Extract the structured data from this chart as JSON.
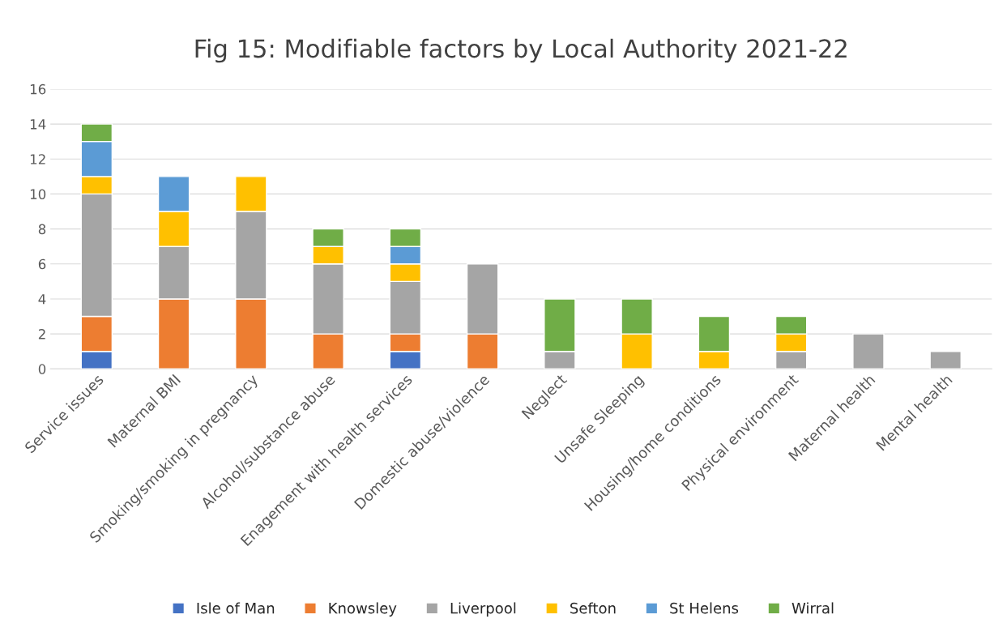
{
  "chart_data": {
    "type": "bar",
    "title": "Fig 15: Modifiable factors by Local Authority 2021-22",
    "categories": [
      "Service issues",
      "Maternal BMI",
      "Smoking/smoking in pregnancy",
      "Alcohol/substance abuse",
      "Enagement with health services",
      "Domestic abuse/violence",
      "Neglect",
      "Unsafe Sleeping",
      "Housing/home conditions",
      "Physical environment",
      "Maternal health",
      "Mental health"
    ],
    "stacked": true,
    "series": [
      {
        "name": "Isle of Man",
        "color": "#4472c4",
        "values": [
          1,
          null,
          null,
          null,
          1,
          null,
          null,
          null,
          null,
          null,
          null,
          null
        ]
      },
      {
        "name": "Knowsley",
        "color": "#ed7d31",
        "values": [
          2,
          4,
          4,
          2,
          1,
          2,
          null,
          null,
          null,
          null,
          null,
          null
        ]
      },
      {
        "name": "Liverpool",
        "color": "#a5a5a5",
        "values": [
          7,
          3,
          5,
          4,
          3,
          4,
          1,
          null,
          null,
          1,
          2,
          1
        ]
      },
      {
        "name": "Sefton",
        "color": "#ffc000",
        "values": [
          1,
          2,
          2,
          1,
          1,
          null,
          null,
          2,
          1,
          1,
          null,
          null
        ]
      },
      {
        "name": "St Helens",
        "color": "#5b9bd5",
        "values": [
          2,
          2,
          null,
          null,
          1,
          null,
          null,
          null,
          null,
          null,
          null,
          null
        ]
      },
      {
        "name": "Wirral",
        "color": "#70ad47",
        "values": [
          1,
          null,
          null,
          1,
          1,
          null,
          3,
          2,
          2,
          1,
          null,
          null
        ]
      }
    ],
    "ylim": [
      0,
      16
    ],
    "yticks": [
      0,
      2,
      4,
      6,
      8,
      10,
      12,
      14,
      16
    ],
    "grid": "y",
    "legend": "bottom"
  }
}
